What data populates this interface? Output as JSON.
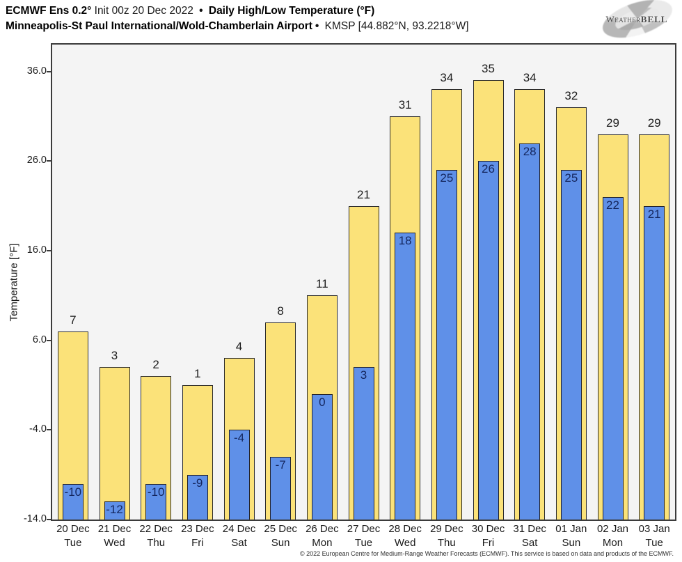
{
  "header": {
    "title_bold_model": "ECMWF Ens 0.2°",
    "title_init": " Init 00z 20 Dec 2022 ",
    "bullet": "•",
    "title_bold_metric": " Daily High/Low Temperature (°F)",
    "station_bold": "Minneapolis-St Paul International/Wold-Chamberlain Airport",
    "station_code": " KMSP [44.882°N, 93.2218°W]"
  },
  "logo": {
    "text_weather": "Weather",
    "text_bell": "BELL"
  },
  "chart_data": {
    "type": "bar",
    "title": "ECMWF Ens 0.2° Init 00z 20 Dec 2022 • Daily High/Low Temperature (°F) — Minneapolis-St Paul International/Wold-Chamberlain Airport (KMSP)",
    "xlabel": "",
    "ylabel": "Temperature [°F]",
    "ylim": [
      -14,
      39
    ],
    "base_value": -14,
    "grid": false,
    "legend": "none",
    "plot_bg": "#f4f4f4",
    "yticks": [
      {
        "value": 36,
        "label": "36.0"
      },
      {
        "value": 26,
        "label": "26.0"
      },
      {
        "value": 16,
        "label": "16.0"
      },
      {
        "value": 6,
        "label": "6.0"
      },
      {
        "value": -4,
        "label": "-4.0"
      },
      {
        "value": -14,
        "label": "-14.0"
      }
    ],
    "categories": [
      {
        "date": "20 Dec",
        "day": "Tue"
      },
      {
        "date": "21 Dec",
        "day": "Wed"
      },
      {
        "date": "22 Dec",
        "day": "Thu"
      },
      {
        "date": "23 Dec",
        "day": "Fri"
      },
      {
        "date": "24 Dec",
        "day": "Sat"
      },
      {
        "date": "25 Dec",
        "day": "Sun"
      },
      {
        "date": "26 Dec",
        "day": "Mon"
      },
      {
        "date": "27 Dec",
        "day": "Tue"
      },
      {
        "date": "28 Dec",
        "day": "Wed"
      },
      {
        "date": "29 Dec",
        "day": "Thu"
      },
      {
        "date": "30 Dec",
        "day": "Fri"
      },
      {
        "date": "31 Dec",
        "day": "Sat"
      },
      {
        "date": "01 Jan",
        "day": "Sun"
      },
      {
        "date": "02 Jan",
        "day": "Mon"
      },
      {
        "date": "03 Jan",
        "day": "Tue"
      }
    ],
    "series": [
      {
        "name": "Daily High",
        "color": "#fbe279",
        "values": [
          7,
          3,
          2,
          1,
          4,
          8,
          11,
          21,
          31,
          34,
          35,
          34,
          32,
          29,
          29
        ]
      },
      {
        "name": "Daily Low",
        "color": "#5f90e8",
        "values": [
          -10,
          -12,
          -10,
          -9,
          -4,
          -7,
          0,
          3,
          18,
          25,
          26,
          28,
          25,
          22,
          21
        ]
      }
    ]
  },
  "footer": {
    "copyright": "© 2022 European Centre for Medium-Range Weather Forecasts (ECMWF). This service is based on data and products of the ECMWF."
  }
}
